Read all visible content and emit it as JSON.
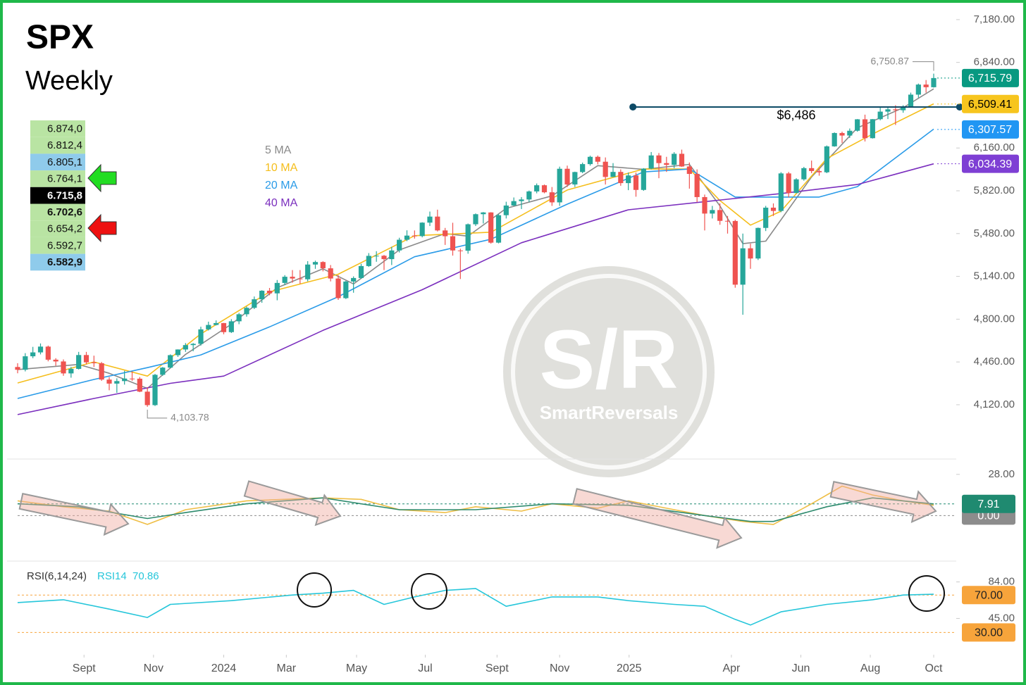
{
  "title": "SPX",
  "subtitle": "Weekly",
  "order_levels": [
    {
      "text": "6.874,0",
      "color": "#b9e4a3",
      "bold": false
    },
    {
      "text": "6.812,4",
      "color": "#b9e4a3",
      "bold": false
    },
    {
      "text": "6.805,1",
      "color": "#8fcbeb",
      "bold": false
    },
    {
      "text": "6.764,1",
      "color": "#b9e4a3",
      "bold": false
    },
    {
      "text": "6.715,8",
      "color": "#000000",
      "bold": true
    },
    {
      "text": "6.702,6",
      "color": "#b9e4a3",
      "bold": true
    },
    {
      "text": "6.654,2",
      "color": "#b9e4a3",
      "bold": false
    },
    {
      "text": "6.592,7",
      "color": "#b9e4a3",
      "bold": false
    },
    {
      "text": "6.582,9",
      "color": "#8fcbeb",
      "bold": true
    }
  ],
  "watermark": {
    "logo": "S/R",
    "name": "SmartReversals"
  },
  "chart_data": [
    {
      "type": "candlestick",
      "xlim": [
        0,
        120
      ],
      "ylim": [
        3700,
        7280
      ],
      "up_color": "#26a69a",
      "down_color": "#ef5350",
      "yticks": [
        {
          "value": 7180,
          "label": "7,180.00"
        },
        {
          "value": 6840,
          "label": "6,840.00"
        },
        {
          "value": 6160,
          "label": "6,160.00"
        },
        {
          "value": 5820,
          "label": "5,820.00"
        },
        {
          "value": 5480,
          "label": "5,480.00"
        },
        {
          "value": 5140,
          "label": "5,140.00"
        },
        {
          "value": 4800,
          "label": "4,800.00"
        },
        {
          "value": 4460,
          "label": "4,460.00"
        },
        {
          "value": 4120,
          "label": "4,120.00"
        }
      ],
      "x": [
        0,
        1,
        2,
        3,
        4,
        5,
        6,
        7,
        8,
        9,
        10,
        11,
        12,
        13,
        14,
        15,
        16,
        17,
        18,
        19,
        20,
        21,
        22,
        23,
        24,
        25,
        26,
        27,
        28,
        29,
        30,
        31,
        32,
        33,
        34,
        35,
        36,
        37,
        38,
        39,
        40,
        41,
        42,
        43,
        44,
        45,
        46,
        47,
        48,
        49,
        50,
        51,
        52,
        53,
        54,
        55,
        56,
        57,
        58,
        59,
        60,
        61,
        62,
        63,
        64,
        65,
        66,
        67,
        68,
        69,
        70,
        71,
        72,
        73,
        74,
        75,
        76,
        77,
        78,
        79,
        80,
        81,
        82,
        83,
        84,
        85,
        86,
        87,
        88,
        89,
        90,
        91,
        92,
        93,
        94,
        95,
        96,
        97,
        98,
        99,
        100,
        101,
        102,
        103,
        104,
        105,
        106,
        107,
        108,
        109,
        110,
        111,
        112,
        113,
        114,
        115,
        116,
        117,
        118,
        119,
        120
      ],
      "candles": {
        "open": [
          4420,
          4398,
          4505,
          4536,
          4582,
          4478,
          4464,
          4369,
          4405,
          4515,
          4457,
          4450,
          4320,
          4288,
          4308,
          4328,
          4327,
          4224,
          4117,
          4358,
          4415,
          4514,
          4559,
          4594,
          4604,
          4719,
          4754,
          4769,
          4697,
          4783,
          4839,
          4890,
          4958,
          5026,
          5005,
          5088,
          5137,
          5123,
          5117,
          5234,
          5254,
          5204,
          5123,
          4967,
          5099,
          5127,
          5222,
          5303,
          5304,
          5277,
          5346,
          5431,
          5464,
          5460,
          5567,
          5615,
          5505,
          5459,
          5346,
          5344,
          5554,
          5634,
          5648,
          5408,
          5626,
          5703,
          5738,
          5751,
          5815,
          5864,
          5808,
          5728,
          5995,
          5870,
          5969,
          6032,
          6090,
          6051,
          5930,
          5970,
          5881,
          5942,
          5827,
          5996,
          6101,
          6040,
          6026,
          6114,
          6013,
          5954,
          5770,
          5639,
          5667,
          5581,
          5580,
          5074,
          5363,
          5282,
          5525,
          5686,
          5660,
          5958,
          5802,
          5911,
          6000,
          5977,
          5967,
          6173,
          6279,
          6259,
          6297,
          6388,
          6238,
          6389,
          6449,
          6467,
          6460,
          6481,
          6584,
          6664,
          6643
        ],
        "high": [
          4450,
          4530,
          4580,
          4607,
          4590,
          4490,
          4480,
          4420,
          4540,
          4540,
          4510,
          4460,
          4340,
          4330,
          4390,
          4385,
          4340,
          4260,
          4365,
          4420,
          4520,
          4560,
          4610,
          4610,
          4740,
          4780,
          4790,
          4770,
          4800,
          4850,
          4900,
          4980,
          5030,
          5048,
          5111,
          5150,
          5190,
          5190,
          5261,
          5265,
          5260,
          5230,
          5150,
          5105,
          5140,
          5240,
          5325,
          5340,
          5310,
          5375,
          5447,
          5506,
          5505,
          5570,
          5655,
          5670,
          5525,
          5566,
          5360,
          5560,
          5640,
          5651,
          5650,
          5636,
          5733,
          5767,
          5770,
          5822,
          5878,
          5870,
          5850,
          6012,
          6020,
          5972,
          6044,
          6099,
          6100,
          6085,
          6040,
          5990,
          5965,
          5965,
          6000,
          6128,
          6120,
          6090,
          6127,
          6147,
          6045,
          5990,
          5790,
          5700,
          5720,
          5620,
          5590,
          5480,
          5400,
          5528,
          5700,
          5720,
          5968,
          5970,
          5920,
          6010,
          6060,
          6000,
          6180,
          6284,
          6290,
          6315,
          6390,
          6425,
          6390,
          6480,
          6481,
          6500,
          6500,
          6600,
          6672,
          6700,
          6750.87
        ],
        "low": [
          4370,
          4385,
          4490,
          4520,
          4465,
          4430,
          4350,
          4335,
          4400,
          4440,
          4420,
          4310,
          4235,
          4215,
          4280,
          4310,
          4220,
          4103.78,
          4110,
          4350,
          4410,
          4500,
          4540,
          4545,
          4590,
          4710,
          4750,
          4680,
          4690,
          4760,
          4820,
          4880,
          4930,
          4990,
          4950,
          5070,
          5090,
          5080,
          5100,
          5200,
          5180,
          5100,
          4953,
          4960,
          5010,
          5120,
          5215,
          5256,
          5190,
          5230,
          5330,
          5420,
          5440,
          5450,
          5540,
          5497,
          5390,
          5305,
          5119,
          5320,
          5540,
          5560,
          5400,
          5402,
          5600,
          5700,
          5675,
          5730,
          5800,
          5800,
          5700,
          5700,
          5850,
          5850,
          5960,
          6020,
          6030,
          5870,
          5930,
          5860,
          5825,
          5773,
          5820,
          5990,
          5920,
          5970,
          6000,
          6010,
          5837,
          5730,
          5505,
          5600,
          5550,
          5480,
          5050,
          4835,
          5200,
          5270,
          5500,
          5620,
          5650,
          5767,
          5800,
          5900,
          5960,
          5940,
          5960,
          6170,
          6200,
          6240,
          6290,
          6212,
          6235,
          6380,
          6390,
          6343,
          6440,
          6480,
          6560,
          6600,
          6640
        ],
        "close": [
          4398,
          4505,
          4536,
          4582,
          4478,
          4464,
          4369,
          4405,
          4515,
          4457,
          4450,
          4320,
          4288,
          4308,
          4328,
          4327,
          4224,
          4117,
          4358,
          4415,
          4514,
          4559,
          4594,
          4604,
          4719,
          4754,
          4769,
          4697,
          4783,
          4839,
          4890,
          4958,
          5026,
          5005,
          5088,
          5137,
          5123,
          5117,
          5234,
          5254,
          5204,
          5123,
          4967,
          5099,
          5127,
          5222,
          5303,
          5304,
          5277,
          5346,
          5431,
          5464,
          5460,
          5567,
          5615,
          5505,
          5459,
          5346,
          5344,
          5554,
          5634,
          5648,
          5408,
          5626,
          5703,
          5738,
          5751,
          5815,
          5864,
          5808,
          5728,
          5995,
          5870,
          5969,
          6032,
          6090,
          6051,
          5930,
          5970,
          5881,
          5942,
          5827,
          5996,
          6101,
          6040,
          6026,
          6114,
          6013,
          5954,
          5770,
          5639,
          5667,
          5581,
          5580,
          5074,
          5363,
          5282,
          5525,
          5686,
          5660,
          5958,
          5802,
          5911,
          6000,
          5977,
          5967,
          6173,
          6279,
          6259,
          6297,
          6388,
          6238,
          6389,
          6449,
          6467,
          6460,
          6481,
          6584,
          6664,
          6643,
          6715.79
        ]
      },
      "series": [
        {
          "name": "5 MA",
          "color": "#8a8a8a",
          "x": [
            0,
            8,
            12,
            17,
            22,
            28,
            34,
            40,
            44,
            50,
            56,
            59,
            64,
            70,
            76,
            82,
            88,
            92,
            95,
            98,
            104,
            110,
            116,
            120
          ],
          "values": [
            4400,
            4440,
            4370,
            4250,
            4520,
            4760,
            5050,
            5200,
            5080,
            5350,
            5480,
            5460,
            5680,
            5780,
            6020,
            5990,
            6030,
            5700,
            5400,
            5420,
            5930,
            6320,
            6480,
            6630
          ]
        },
        {
          "name": "10 MA",
          "color": "#f5be1c",
          "x": [
            0,
            10,
            17,
            24,
            33,
            42,
            52,
            62,
            72,
            82,
            88,
            92,
            96,
            100,
            106,
            112,
            120
          ],
          "values": [
            4293,
            4460,
            4348,
            4683,
            5017,
            5157,
            5463,
            5491,
            5826,
            5993,
            5993,
            5742,
            5547,
            5658,
            6076,
            6271,
            6511
          ]
        },
        {
          "name": "20 MA",
          "color": "#2a9be8",
          "x": [
            0,
            10,
            17,
            24,
            33,
            42,
            52,
            62,
            72,
            82,
            88,
            94,
            99,
            105,
            110,
            120
          ],
          "values": [
            4170,
            4321,
            4415,
            4516,
            4739,
            4978,
            5296,
            5435,
            5714,
            5970,
            5993,
            5770,
            5770,
            5770,
            5853,
            6310
          ]
        },
        {
          "name": "40 MA",
          "color": "#7b2fbe",
          "x": [
            0,
            10,
            20,
            27,
            40,
            53,
            66,
            80,
            93,
            100,
            110,
            120
          ],
          "values": [
            4042,
            4170,
            4290,
            4348,
            4711,
            5034,
            5407,
            5669,
            5753,
            5798,
            5870,
            6034
          ]
        }
      ],
      "annotations": [
        {
          "value": 6750.87,
          "label": "6,750.87",
          "x": 120
        },
        {
          "value": 4103.78,
          "label": "4,103.78",
          "x": 17
        }
      ],
      "level": {
        "value": 6486,
        "label": "$6,486",
        "x": [
          80.6,
          123.4
        ],
        "color": "#0d4a66"
      },
      "badges": [
        {
          "value": 6715.79,
          "label": "6,715.79",
          "color": "#089981",
          "text_color": "#ffffff"
        },
        {
          "value": 6509.41,
          "label": "6,509.41",
          "color": "#f7c51e",
          "text_color": "#000000"
        },
        {
          "value": 6307.57,
          "label": "6,307.57",
          "color": "#2196f3",
          "text_color": "#ffffff"
        },
        {
          "value": 6034.39,
          "label": "6,034.39",
          "color": "#7e3fd4",
          "text_color": "#ffffff"
        }
      ]
    },
    {
      "type": "line",
      "xlim": [
        0,
        120
      ],
      "ylim": [
        -30,
        37
      ],
      "yticks": [
        {
          "value": 28,
          "label": "28.00"
        },
        {
          "value": 0,
          "label": "0.00",
          "color": "#8c8c8c"
        },
        {
          "value": 7.91,
          "label": "7.91",
          "color": "#1f8a70"
        }
      ],
      "series": [
        {
          "color": "#efbe45",
          "x": [
            0,
            6,
            12,
            17,
            22,
            30,
            40,
            45,
            50,
            56,
            60,
            66,
            70,
            76,
            80,
            85,
            90,
            95,
            99,
            104,
            108,
            112,
            116,
            120
          ],
          "values": [
            10,
            6,
            3,
            -6,
            4,
            10,
            12,
            11,
            4,
            2,
            6,
            3,
            8,
            5,
            10,
            5,
            0,
            -4,
            -6,
            8,
            20,
            14,
            10,
            7
          ]
        },
        {
          "color": "#2e8b6e",
          "x": [
            0,
            8,
            17,
            22,
            30,
            40,
            50,
            60,
            70,
            80,
            90,
            96,
            99,
            106,
            112,
            120
          ],
          "values": [
            8,
            6,
            -2,
            2,
            8,
            12,
            4,
            4,
            8,
            7,
            0,
            -4,
            -4,
            6,
            12,
            7.91
          ]
        }
      ]
    },
    {
      "type": "line",
      "title": "RSI(6,14,24)",
      "xlim": [
        0,
        120
      ],
      "ylim": [
        10,
        104
      ],
      "xticks": [
        {
          "value": 8.7,
          "label": "Sept"
        },
        {
          "value": 17.8,
          "label": "Nov"
        },
        {
          "value": 27,
          "label": "2024"
        },
        {
          "value": 35.2,
          "label": "Mar"
        },
        {
          "value": 44.4,
          "label": "May"
        },
        {
          "value": 53.4,
          "label": "Jul"
        },
        {
          "value": 62.8,
          "label": "Sept"
        },
        {
          "value": 71,
          "label": "Nov"
        },
        {
          "value": 80.1,
          "label": "2025"
        },
        {
          "value": 93.5,
          "label": "Apr"
        },
        {
          "value": 102.6,
          "label": "Jun"
        },
        {
          "value": 111.7,
          "label": "Aug"
        },
        {
          "value": 120,
          "label": "Oct"
        }
      ],
      "yticks": [
        {
          "value": 84,
          "label": "84.00"
        },
        {
          "value": 70,
          "label": "70.00",
          "color": "#f7a43b"
        },
        {
          "value": 45,
          "label": "45.00"
        },
        {
          "value": 30,
          "label": "30.00",
          "color": "#f7a43b"
        }
      ],
      "series": [
        {
          "name": "RSI14",
          "color": "#26c6da",
          "x": [
            0,
            6,
            12,
            17,
            20,
            28,
            36,
            40,
            44,
            48,
            52,
            56,
            60,
            64,
            70,
            76,
            80,
            86,
            90,
            94,
            96,
            100,
            106,
            112,
            116,
            120
          ],
          "values": [
            62,
            65,
            55,
            46,
            60,
            64,
            70,
            72,
            75,
            60,
            68,
            75,
            77,
            58,
            68,
            68,
            64,
            60,
            58,
            44,
            38,
            52,
            60,
            65,
            70,
            70.86
          ]
        }
      ]
    }
  ]
}
